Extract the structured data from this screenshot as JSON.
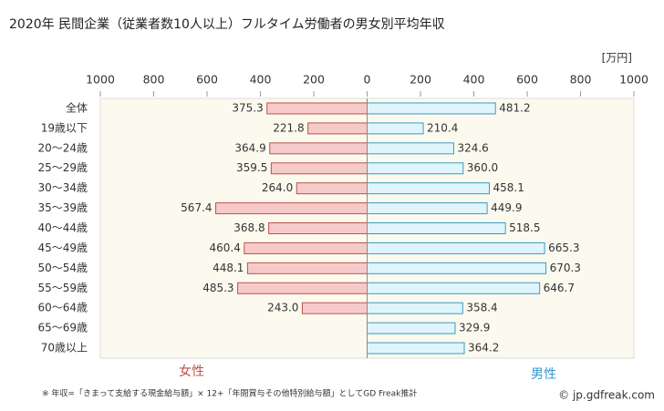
{
  "chart_data": {
    "type": "butterfly",
    "title": "2020年 民間企業（従業者数10人以上）フルタイム労働者の男女別平均年収",
    "unit": "[万円]",
    "categories": [
      "全体",
      "19歳以下",
      "20～24歳",
      "25～29歳",
      "30～34歳",
      "35～39歳",
      "40～44歳",
      "45～49歳",
      "50～54歳",
      "55～59歳",
      "60～64歳",
      "65～69歳",
      "70歳以上"
    ],
    "series": [
      {
        "name": "女性",
        "color": "#f7caca",
        "stroke": "#c0504d",
        "legend_color": "#c0504d",
        "side": "left",
        "values": [
          375.3,
          221.8,
          364.9,
          359.5,
          264.0,
          567.4,
          368.8,
          460.4,
          448.1,
          485.3,
          243.0,
          null,
          null
        ],
        "value_labels": [
          "375.3",
          "221.8",
          "364.9",
          "359.5",
          "264.0",
          "567.4",
          "368.8",
          "460.4",
          "448.1",
          "485.3",
          "243.0",
          null,
          null
        ]
      },
      {
        "name": "男性",
        "color": "#dff4fb",
        "stroke": "#3c9cc0",
        "legend_color": "#3399cc",
        "side": "right",
        "values": [
          481.2,
          210.4,
          324.6,
          360.0,
          458.1,
          449.9,
          518.5,
          665.3,
          670.3,
          646.7,
          358.4,
          329.9,
          364.2
        ],
        "value_labels": [
          "481.2",
          "210.4",
          "324.6",
          "360.0",
          "458.1",
          "449.9",
          "518.5",
          "665.3",
          "670.3",
          "646.7",
          "358.4",
          "329.9",
          "364.2"
        ]
      }
    ],
    "xlim": [
      0,
      1000
    ],
    "xticks": [
      0,
      200,
      400,
      600,
      800,
      1000
    ],
    "footnote": "※ 年収=「きまって支給する現金給与額」× 12+「年間賞与その他特別給与額」としてGD Freak推計",
    "credit": "© jp.gdfreak.com"
  }
}
